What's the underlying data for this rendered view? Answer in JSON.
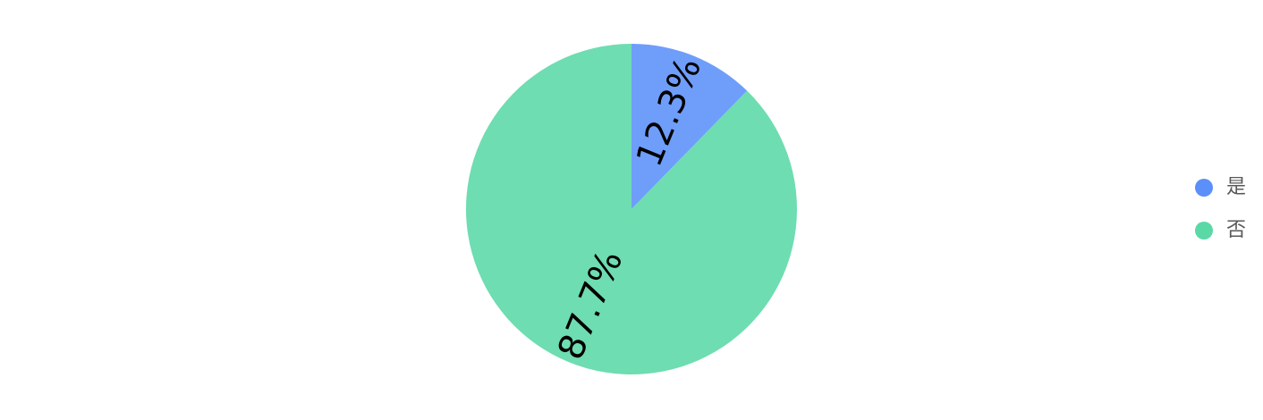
{
  "chart_data": {
    "type": "pie",
    "categories": [
      "是",
      "否"
    ],
    "values": [
      12.3,
      87.7
    ],
    "value_labels": [
      "12.3%",
      "87.7%"
    ],
    "colors": [
      "#5B8FF9",
      "#5AD8A6"
    ],
    "legend": "right"
  }
}
